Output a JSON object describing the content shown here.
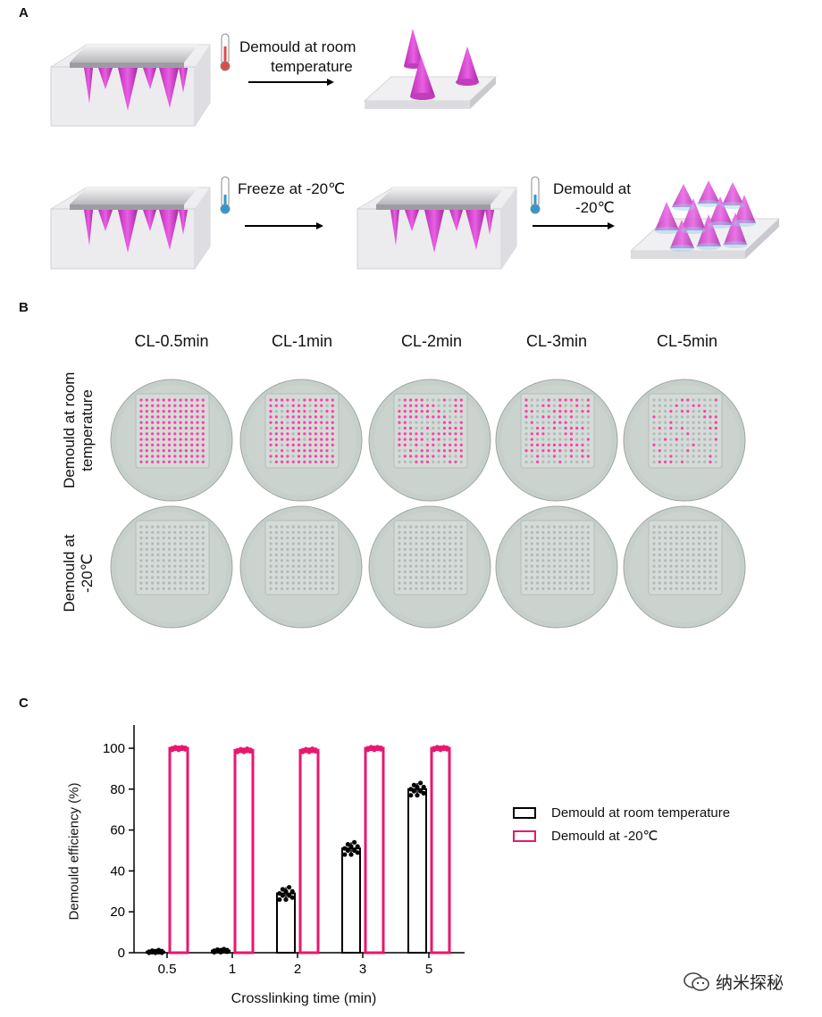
{
  "panels": {
    "a": "A",
    "b": "B",
    "c": "C"
  },
  "schematic": {
    "step1_label": "Demould at room temperature",
    "step1_line1": "Demould at room",
    "step1_line2": "temperature",
    "step2_label": "Freeze at -20℃",
    "step3_line1": "Demould at",
    "step3_line2": "-20℃",
    "thermo_warm_color": "#e04a4a",
    "thermo_cold_color": "#2a9ad6",
    "cone_color": "#d63fd0",
    "icons": [
      "thermometer-warm-icon",
      "thermometer-cold-icon",
      "arrow-right-icon"
    ]
  },
  "photos": {
    "columns": [
      "CL-0.5min",
      "CL-1min",
      "CL-2min",
      "CL-3min",
      "CL-5min"
    ],
    "rows": [
      {
        "line1": "Demould at room",
        "line2": "temperature"
      },
      {
        "line1": "Demould at",
        "line2": "-20℃"
      }
    ],
    "needle_color": "#ff3fa6",
    "dish_color": "#c9d1cd"
  },
  "chart_data": {
    "type": "bar",
    "xlabel": "Crosslinking time (min)",
    "ylabel": "Demould efficiency (%)",
    "categories": [
      "0.5",
      "1",
      "2",
      "3",
      "5"
    ],
    "ylim": [
      0,
      110
    ],
    "yticks": [
      0,
      20,
      40,
      60,
      80,
      100
    ],
    "legend_position": "right",
    "series": [
      {
        "name": "Demould at room temperature",
        "color": "#000000",
        "values": [
          0.5,
          1,
          29,
          51,
          80
        ]
      },
      {
        "name": "Demould at -20℃",
        "color": "#e8176f",
        "values": [
          100,
          99,
          99,
          100,
          100
        ]
      }
    ]
  },
  "watermark": "纳米探秘"
}
